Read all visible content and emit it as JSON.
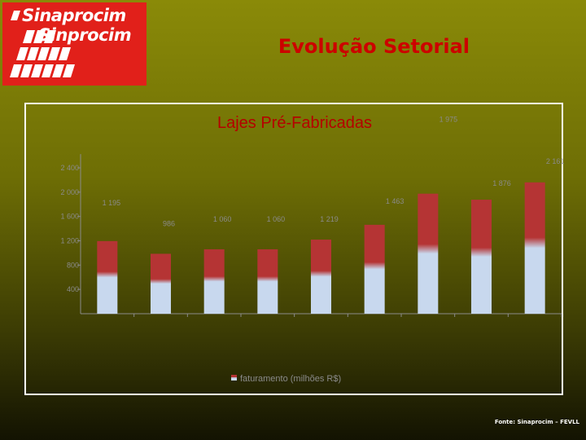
{
  "header": {
    "logo_line1": "Sinaprocim",
    "logo_line2": "Sinprocim",
    "title": "Evolução Setorial",
    "logo_color": "#e1201a",
    "title_color": "#cc0000"
  },
  "footer": {
    "source": "Fonte: Sinaprocim – FEVLL"
  },
  "chart_data": {
    "type": "bar",
    "title": "Lajes Pré-Fabricadas",
    "xlabel": "",
    "ylabel": "",
    "ylim": [
      0,
      2600
    ],
    "yticks": [
      400,
      800,
      1200,
      1600,
      2000,
      2400
    ],
    "ytick_labels": [
      "400",
      "800",
      "1 200",
      "1 600",
      "2 000",
      "2 400"
    ],
    "grid": false,
    "legend_position": "bottom",
    "categories": [
      "",
      "",
      "",
      "",
      "",
      "",
      "",
      "",
      ""
    ],
    "series": [
      {
        "name": "faturamento (milhões R$)",
        "values": [
          1195,
          986,
          1060,
          1060,
          1219,
          1463,
          1975,
          1876,
          2161
        ],
        "labels": [
          "1 195",
          "986",
          "1 060",
          "1 060",
          "1 219",
          "1 463",
          "1 975",
          "1 876",
          "2 161"
        ],
        "color_top": "#b53434",
        "color_bottom": "#c8d8ee"
      }
    ]
  }
}
